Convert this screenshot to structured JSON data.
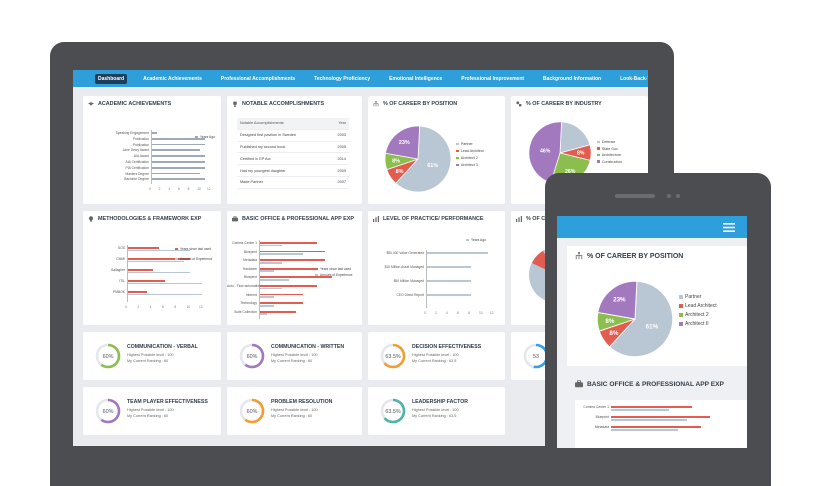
{
  "nav": {
    "items": [
      "Dashboard",
      "Academic Achievements",
      "Professional Accomplishments",
      "Technology Proficiency",
      "Emotional Intelligence",
      "Professional Improvement",
      "Background Information",
      "Look-Back-Ten"
    ]
  },
  "academic": {
    "title": "ACADEMIC ACHIEVEMENTS",
    "legend": "Years Ago",
    "rows": [
      "Speaking Engagement",
      "Publication",
      "Publication",
      "Jane Dewy Award",
      "AIA Award",
      "AIA Certification",
      "PIA Certification",
      "Masters Degree",
      "Bachelor Degree"
    ],
    "values": [
      1,
      11,
      11,
      10,
      11,
      11,
      11,
      10,
      11
    ],
    "ticks": [
      "0",
      "2",
      "4",
      "6",
      "8",
      "10",
      "12"
    ]
  },
  "notable": {
    "title": "NOTABLE ACCOMPLISHMENTS",
    "col_accomplishment": "Notable Accomplishments",
    "col_year": "Year",
    "rows": [
      {
        "text": "Designed first pavilion in Sweden",
        "year": "2003"
      },
      {
        "text": "Published my second book",
        "year": "2005"
      },
      {
        "text": "Certified in EP Act",
        "year": "2014"
      },
      {
        "text": "Had my youngest daughter",
        "year": "2009"
      },
      {
        "text": "Made Partner",
        "year": "2007"
      }
    ]
  },
  "career_position": {
    "title": "% OF CAREER BY POSITION",
    "slices": [
      {
        "label": "Partner",
        "value": 61,
        "color": "#b9c6d4"
      },
      {
        "label": "Lead Architect",
        "value": 8,
        "color": "#e25c4f"
      },
      {
        "label": "Architect 2",
        "value": 8,
        "color": "#8bbd4f"
      },
      {
        "label": "Architect 3",
        "value": 23,
        "color": "#a278be"
      }
    ],
    "pct_labels": [
      "61%",
      "8%",
      "8%",
      "23%"
    ]
  },
  "career_industry": {
    "title": "% OF CAREER BY INDUSTRY",
    "slices": [
      {
        "label": "Defense",
        "value": 20,
        "color": "#b9c6d4"
      },
      {
        "label": "State Gov",
        "value": 8,
        "color": "#e25c4f"
      },
      {
        "label": "Architecture",
        "value": 26,
        "color": "#8bbd4f"
      },
      {
        "label": "Construction",
        "value": 46,
        "color": "#a278be"
      }
    ],
    "pct_labels": [
      "46%",
      "26%",
      "8%"
    ]
  },
  "methodologies": {
    "title": "METHODOLOGIES & FRAMEWORK EXP",
    "legend_a": "Years since last used",
    "legend_b": "Amount of Experience",
    "rows": [
      "SOS",
      "CMMI",
      "Gallagher",
      "ITIL",
      "PMBOK"
    ],
    "values_a": [
      5,
      10,
      4,
      6,
      3
    ],
    "values_b": [
      10,
      9,
      10,
      12,
      12
    ],
    "ticks": [
      "0",
      "2",
      "4",
      "6",
      "8",
      "10",
      "12"
    ]
  },
  "office": {
    "title": "BASIC OFFICE & PROFESSIONAL APP EXP",
    "legend_a": "Years since last used",
    "legend_b": "Amount of Experience",
    "rows": [
      "Comms Center 1",
      "Blueprint",
      "Metadata",
      "Hardware",
      "Blueprint",
      "Auto - Flow automation",
      "Internet",
      "Technology",
      "Suite Collection"
    ],
    "values_a": [
      8,
      9,
      9,
      8,
      10,
      8,
      6,
      6,
      5
    ],
    "values_b": [
      3,
      6,
      3,
      2,
      4,
      3,
      2,
      2,
      1
    ]
  },
  "practice": {
    "title": "LEVEL OF PRACTICE/ PERFORMANCE",
    "legend": "Years Ago",
    "rows": [
      "$50,000 Value Generated",
      "$10 Million Asset Managed",
      "$50 Million Managed",
      "CEO Direct Report"
    ],
    "values": [
      11,
      8,
      8,
      8
    ],
    "ticks": [
      "0",
      "2",
      "4",
      "6",
      "8",
      "10",
      "12"
    ]
  },
  "fifth_col_title": "% OF CA",
  "kpis": [
    {
      "title": "COMMUNICATION - VERBAL",
      "pct": "60%",
      "value": 60,
      "color": "#8bbd4f",
      "line1": "Highest Possible level : 100",
      "line2": "My Current Ranking : 60"
    },
    {
      "title": "COMMUNICATION - WRITTEN",
      "pct": "60%",
      "value": 60,
      "color": "#a278be",
      "line1": "Highest Possible level : 100",
      "line2": "My Current Ranking : 60"
    },
    {
      "title": "DECISION EFFECTIVENESS",
      "pct": "63.5%",
      "value": 63.5,
      "color": "#f39c32",
      "line1": "Highest Possible level : 100",
      "line2": "My Current Ranking : 63.5"
    },
    {
      "title": "",
      "pct": "53",
      "value": 53,
      "color": "#3a9fdc",
      "line1": "",
      "line2": ""
    },
    {
      "title": "TEAM PLAYER EFFECTIVENESS",
      "pct": "60%",
      "value": 60,
      "color": "#a278be",
      "line1": "Highest Possible level : 100",
      "line2": "My Current Ranking : 60"
    },
    {
      "title": "PROBLEM RESOLUTION",
      "pct": "60%",
      "value": 60,
      "color": "#f39c32",
      "line1": "Highest Possible level : 100",
      "line2": "My Current Ranking : 60"
    },
    {
      "title": "LEADERSHIP FACTOR",
      "pct": "63.5%",
      "value": 63.5,
      "color": "#4bb5a7",
      "line1": "Highest Possible level : 100",
      "line2": "My Current Ranking : 63.5"
    }
  ],
  "phone": {
    "career_title": "% OF CAREER BY POSITION",
    "legend": [
      "Partner",
      "Lead Architect",
      "Architect 2",
      "Architect II"
    ],
    "pct_labels": [
      "61%",
      "8%",
      "8%",
      "23%"
    ],
    "office_title": "BASIC OFFICE & PROFESSIONAL APP EXP",
    "office_rows": [
      "Comms Center 1",
      "Blueprint",
      "Metadata"
    ]
  }
}
